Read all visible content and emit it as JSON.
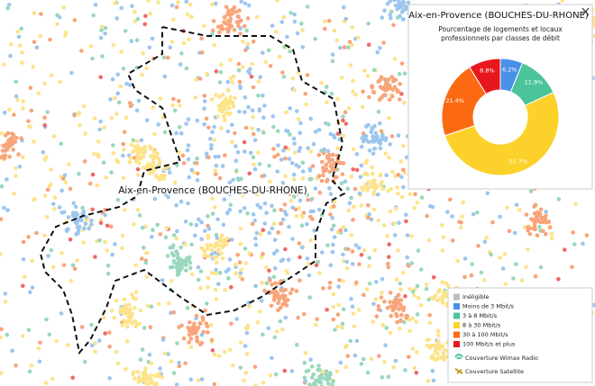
{
  "map": {
    "label": "Aix-en-Provence (BOUCHES-DU-RHONE)"
  },
  "popup": {
    "title": "Aix-en-Provence (BOUCHES-DU-RHONE)",
    "subtitle": "Pourcentage de logements et locaux professionnels par classes de débit",
    "chart": {
      "type": "pie",
      "values": [
        6.2,
        11.9,
        51.7,
        21.4,
        8.8
      ],
      "value_labels": [
        "6.2%",
        "11.9%",
        "51.7%",
        "21.4%",
        "8.8%"
      ],
      "colors": [
        "#4a90e8",
        "#4cc49a",
        "#fcd12a",
        "#fb6a12",
        "#e8171e"
      ]
    }
  },
  "legend": {
    "items": [
      {
        "label": "Inéligible",
        "color": "#bdbdbd"
      },
      {
        "label": "Moins de 3 Mbit/s",
        "color": "#4a90e8"
      },
      {
        "label": "3 à 8 Mbit/s",
        "color": "#4cc49a"
      },
      {
        "label": "8 à 30 Mbit/s",
        "color": "#fcd12a"
      },
      {
        "label": "30 à 100 Mbit/s",
        "color": "#fb6a12"
      },
      {
        "label": "100 Mbit/s et plus",
        "color": "#e8171e"
      }
    ],
    "coverage": [
      "Couverture Wimax Radio",
      "Couverture Satellite"
    ]
  }
}
